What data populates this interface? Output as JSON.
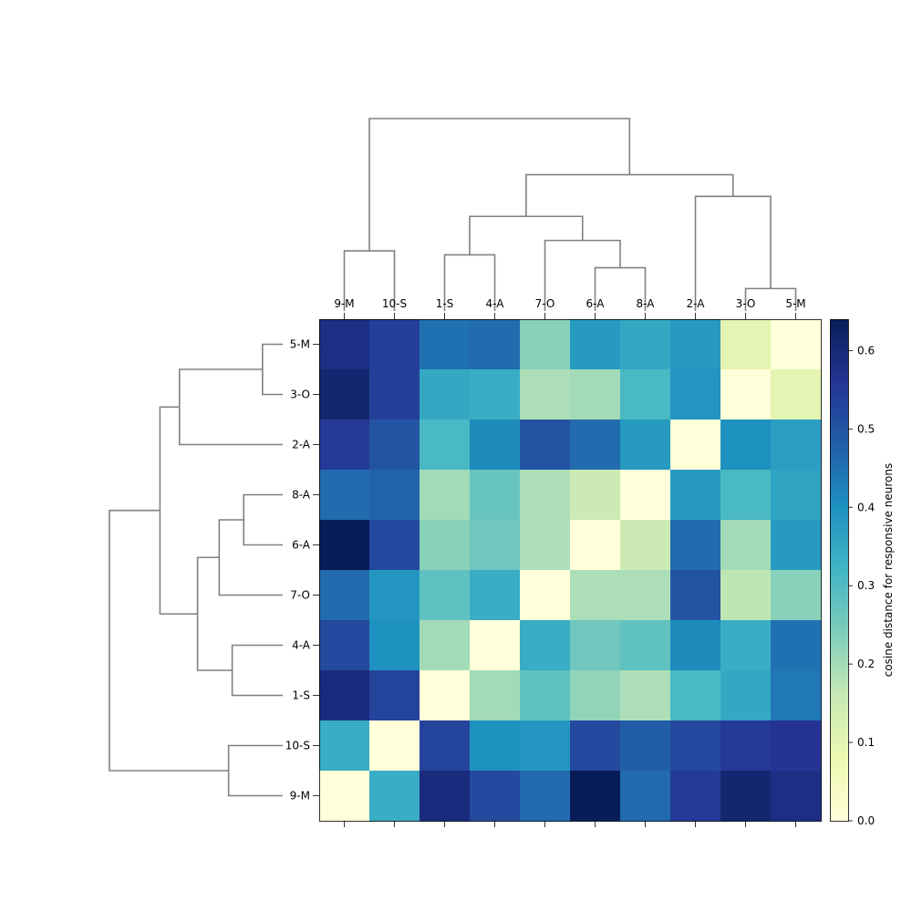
{
  "chart_data": {
    "type": "heatmap",
    "title": "",
    "column_labels": [
      "9-M",
      "10-S",
      "1-S",
      "4-A",
      "7-O",
      "6-A",
      "8-A",
      "2-A",
      "3-O",
      "5-M"
    ],
    "row_labels": [
      "5-M",
      "3-O",
      "2-A",
      "8-A",
      "6-A",
      "7-O",
      "4-A",
      "1-S",
      "10-S",
      "9-M"
    ],
    "values": [
      [
        0.58,
        0.54,
        0.45,
        0.46,
        0.23,
        0.38,
        0.35,
        0.38,
        0.1,
        0.0
      ],
      [
        0.61,
        0.54,
        0.35,
        0.34,
        0.19,
        0.2,
        0.31,
        0.39,
        0.0,
        0.1
      ],
      [
        0.55,
        0.5,
        0.31,
        0.41,
        0.5,
        0.46,
        0.38,
        0.0,
        0.4,
        0.37
      ],
      [
        0.46,
        0.47,
        0.2,
        0.27,
        0.19,
        0.15,
        0.0,
        0.38,
        0.31,
        0.36
      ],
      [
        0.64,
        0.52,
        0.23,
        0.26,
        0.19,
        0.0,
        0.15,
        0.46,
        0.2,
        0.38
      ],
      [
        0.46,
        0.39,
        0.28,
        0.34,
        0.0,
        0.19,
        0.19,
        0.5,
        0.17,
        0.23
      ],
      [
        0.52,
        0.4,
        0.2,
        0.0,
        0.34,
        0.26,
        0.28,
        0.41,
        0.34,
        0.45
      ],
      [
        0.59,
        0.53,
        0.0,
        0.2,
        0.28,
        0.22,
        0.19,
        0.31,
        0.35,
        0.44
      ],
      [
        0.34,
        0.0,
        0.53,
        0.4,
        0.39,
        0.52,
        0.48,
        0.52,
        0.55,
        0.56
      ],
      [
        0.0,
        0.34,
        0.59,
        0.52,
        0.46,
        0.64,
        0.46,
        0.55,
        0.61,
        0.58
      ]
    ],
    "colorbar": {
      "label": "cosine distance for responsive neurons",
      "range": [
        0.0,
        0.64
      ],
      "ticks": [
        "0.0",
        "0.1",
        "0.2",
        "0.3",
        "0.4",
        "0.5",
        "0.6"
      ],
      "colormap": "YlGnBu",
      "stops": [
        "#ffffd9",
        "#edf8b1",
        "#c7e9b4",
        "#7fcdbb",
        "#41b6c4",
        "#1d91c0",
        "#225ea8",
        "#253494",
        "#081d58"
      ]
    },
    "dendrogram_links": [
      {
        "id": "n1",
        "children": [
          "1-S",
          "4-A"
        ],
        "height": 0.7
      },
      {
        "id": "n2",
        "children": [
          "6-A",
          "8-A"
        ],
        "height": 0.54
      },
      {
        "id": "n3",
        "children": [
          "7-O",
          "n2"
        ],
        "height": 0.88
      },
      {
        "id": "n4",
        "children": [
          "n1",
          "n3"
        ],
        "height": 1.18
      },
      {
        "id": "n5",
        "children": [
          "3-O",
          "5-M"
        ],
        "height": 0.28
      },
      {
        "id": "n6",
        "children": [
          "2-A",
          "n5"
        ],
        "height": 1.43
      },
      {
        "id": "n7",
        "children": [
          "n4",
          "n6"
        ],
        "height": 1.7
      },
      {
        "id": "n8",
        "children": [
          "9-M",
          "10-S"
        ],
        "height": 0.75
      },
      {
        "id": "n9",
        "children": [
          "n8",
          "n7"
        ],
        "height": 2.4
      }
    ],
    "dendrogram_color": "#808080"
  }
}
